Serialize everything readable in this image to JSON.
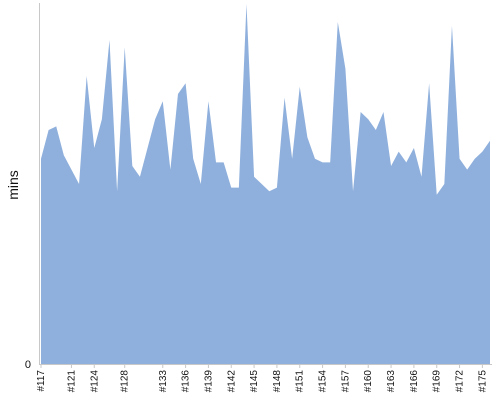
{
  "chart_data": {
    "type": "area",
    "ylabel": "mins",
    "ylim": [
      0,
      100
    ],
    "y_ticks": [
      "0"
    ],
    "grid": false,
    "legend": "none",
    "colors": {
      "fill": "#8fb0dc",
      "axis": "#c8c8c8",
      "text": "#111111"
    },
    "x": [
      "#117",
      "#118",
      "#119",
      "#120",
      "#121",
      "#122",
      "#123",
      "#124",
      "#125",
      "#126",
      "#127",
      "#128",
      "#129",
      "#130",
      "#131",
      "#132",
      "#133",
      "#134",
      "#135",
      "#136",
      "#137",
      "#138",
      "#139",
      "#140",
      "#141",
      "#142",
      "#143",
      "#144",
      "#145",
      "#146",
      "#147",
      "#148",
      "#149",
      "#150",
      "#151",
      "#152",
      "#153",
      "#154",
      "#155",
      "#156",
      "#157",
      "#158",
      "#159",
      "#160",
      "#161",
      "#162",
      "#163",
      "#164",
      "#165",
      "#166",
      "#167",
      "#168",
      "#169",
      "#170",
      "#171",
      "#172",
      "#173",
      "#174",
      "#175",
      "#176"
    ],
    "x_tick_labels": [
      "#117",
      "#121",
      "#124",
      "#128",
      "#133",
      "#136",
      "#139",
      "#142",
      "#145",
      "#148",
      "#151",
      "#154",
      "#157",
      "#160",
      "#163",
      "#166",
      "#169",
      "#172",
      "#175"
    ],
    "values": [
      57,
      65,
      66,
      58,
      54,
      50,
      80,
      60,
      68,
      90,
      48,
      88,
      55,
      52,
      60,
      68,
      73,
      54,
      75,
      78,
      57,
      50,
      73,
      56,
      56,
      49,
      49,
      100,
      52,
      50,
      48,
      49,
      74,
      57,
      77,
      63,
      57,
      56,
      56,
      95,
      82,
      48,
      70,
      68,
      65,
      70,
      55,
      59,
      56,
      60,
      52,
      78,
      47,
      50,
      94,
      57,
      54,
      57,
      59,
      62
    ]
  }
}
